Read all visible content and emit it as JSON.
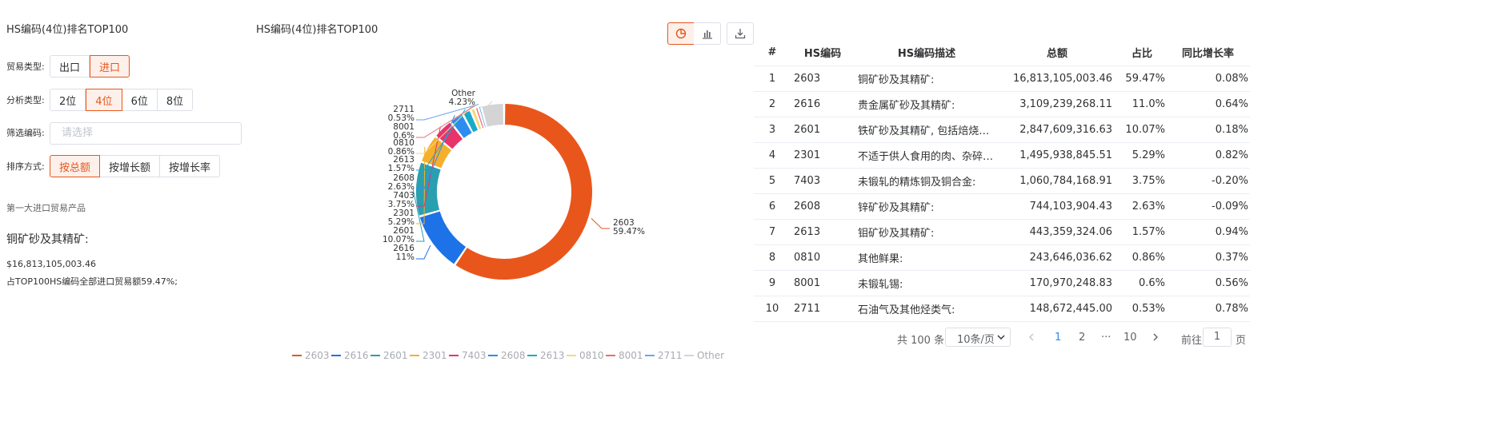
{
  "left_panel": {
    "title": "HS编码(4位)排名TOP100",
    "trade_type": {
      "label": "贸易类型:",
      "options": [
        "出口",
        "进口"
      ],
      "selected": "进口"
    },
    "analysis_type": {
      "label": "分析类型:",
      "options": [
        "2位",
        "4位",
        "6位",
        "8位"
      ],
      "selected": "4位"
    },
    "filter": {
      "label": "筛选编码:",
      "placeholder": "请选择"
    },
    "sort": {
      "label": "排序方式:",
      "options": [
        "按总额",
        "按增长额",
        "按增长率"
      ],
      "selected": "按总额"
    },
    "top_section": {
      "heading": "第一大进口贸易产品",
      "product": "铜矿砂及其精矿:",
      "amount": "$16,813,105,003.46",
      "share_text": "占TOP100HS编码全部进口贸易额59.47%;"
    }
  },
  "chart_panel": {
    "title": "HS编码(4位)排名TOP100",
    "toolbar": {
      "pie_icon": "pie-chart-icon",
      "bar_icon": "bar-chart-icon",
      "download_icon": "download-icon",
      "active": "pie"
    }
  },
  "chart_data": {
    "type": "pie",
    "donut": true,
    "title": "HS编码(4位)排名TOP100",
    "slices": [
      {
        "name": "2603",
        "value": 59.47,
        "label": "59.47%",
        "color": "#e9561b"
      },
      {
        "name": "2616",
        "value": 11.0,
        "label": "11%",
        "color": "#1e72e8"
      },
      {
        "name": "2601",
        "value": 10.07,
        "label": "10.07%",
        "color": "#2a9fb0"
      },
      {
        "name": "2301",
        "value": 5.29,
        "label": "5.29%",
        "color": "#f5b02b"
      },
      {
        "name": "7403",
        "value": 3.75,
        "label": "3.75%",
        "color": "#e8336b"
      },
      {
        "name": "2608",
        "value": 2.63,
        "label": "2.63%",
        "color": "#2d8cf0"
      },
      {
        "name": "2613",
        "value": 1.57,
        "label": "1.57%",
        "color": "#19aacb"
      },
      {
        "name": "0810",
        "value": 0.86,
        "label": "0.86%",
        "color": "#f8d77a"
      },
      {
        "name": "8001",
        "value": 0.6,
        "label": "0.6%",
        "color": "#ee6b6b"
      },
      {
        "name": "2711",
        "value": 0.53,
        "label": "0.53%",
        "color": "#6aa6ea"
      },
      {
        "name": "Other",
        "value": 4.23,
        "label": "4.23%",
        "color": "#d4d4d4"
      }
    ],
    "legend": [
      "2603",
      "2616",
      "2601",
      "2301",
      "7403",
      "2608",
      "2613",
      "0810",
      "8001",
      "2711",
      "Other"
    ],
    "legend_position": "bottom"
  },
  "table": {
    "headers": [
      "#",
      "HS编码",
      "HS编码描述",
      "总额",
      "占比",
      "同比增长率"
    ],
    "rows": [
      [
        "1",
        "2603",
        "铜矿砂及其精矿:",
        "16,813,105,003.46",
        "59.47%",
        "0.08%"
      ],
      [
        "2",
        "2616",
        "贵金属矿砂及其精矿:",
        "3,109,239,268.11",
        "11.0%",
        "0.64%"
      ],
      [
        "3",
        "2601",
        "铁矿砂及其精矿, 包括焙烧黄…",
        "2,847,609,316.63",
        "10.07%",
        "0.18%"
      ],
      [
        "4",
        "2301",
        "不适于供人食用的肉、杂碎、…",
        "1,495,938,845.51",
        "5.29%",
        "0.82%"
      ],
      [
        "5",
        "7403",
        "未锻轧的精炼铜及铜合金:",
        "1,060,784,168.91",
        "3.75%",
        "-0.20%"
      ],
      [
        "6",
        "2608",
        "锌矿砂及其精矿:",
        "744,103,904.43",
        "2.63%",
        "-0.09%"
      ],
      [
        "7",
        "2613",
        "钼矿砂及其精矿:",
        "443,359,324.06",
        "1.57%",
        "0.94%"
      ],
      [
        "8",
        "0810",
        "其他鲜果:",
        "243,646,036.62",
        "0.86%",
        "0.37%"
      ],
      [
        "9",
        "8001",
        "未锻轧锡:",
        "170,970,248.83",
        "0.6%",
        "0.56%"
      ],
      [
        "10",
        "2711",
        "石油气及其他烃类气:",
        "148,672,445.00",
        "0.53%",
        "0.78%"
      ]
    ]
  },
  "pagination": {
    "total": "共 100 条",
    "page_size": "10条/页",
    "pages": [
      "1",
      "2",
      "···",
      "10"
    ],
    "current": "1",
    "goto_label": "前往",
    "goto_value": "1",
    "goto_suffix": "页"
  }
}
